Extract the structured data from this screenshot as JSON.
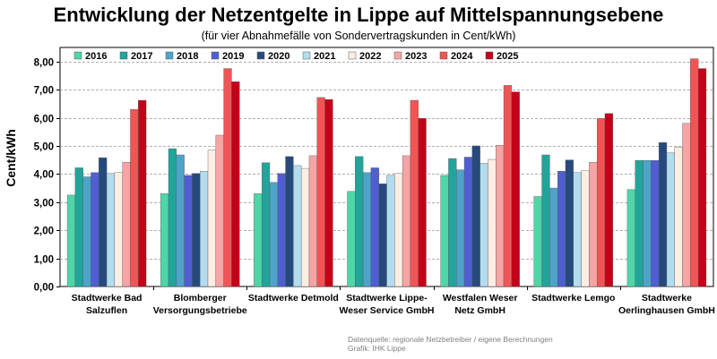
{
  "chart_data": {
    "type": "bar",
    "title": "Entwicklung der Netzentgelte in Lippe auf Mittelspannungsebene",
    "subtitle": "(für vier Abnahmefälle von Sondervertragskunden in Cent/kWh)",
    "ylabel": "Cent/kWh",
    "xlabel": "",
    "ylim": [
      0,
      8.5
    ],
    "yticks": [
      "0,00",
      "1,00",
      "2,00",
      "3,00",
      "4,00",
      "5,00",
      "6,00",
      "7,00",
      "8,00"
    ],
    "grid": true,
    "legend_position": "top-left",
    "categories": [
      [
        "Stadtwerke Bad",
        "Salzuflen"
      ],
      [
        "Blomberger",
        "Versorgungsbetriebe"
      ],
      [
        "Stadtwerke Detmold"
      ],
      [
        "Stadtwerke Lippe-",
        "Weser Service GmbH"
      ],
      [
        "Westfalen Weser",
        "Netz GmbH"
      ],
      [
        "Stadtwerke Lemgo"
      ],
      [
        "Stadtwerke",
        "Oerlinghausen GmbH"
      ]
    ],
    "series": [
      {
        "name": "2016",
        "color": "#4fd6a8",
        "values": [
          3.25,
          3.3,
          3.3,
          3.38,
          3.95,
          3.2,
          3.45
        ]
      },
      {
        "name": "2017",
        "color": "#21a59b",
        "values": [
          4.22,
          4.9,
          4.4,
          4.62,
          4.55,
          4.68,
          4.48
        ]
      },
      {
        "name": "2018",
        "color": "#4ea3c9",
        "values": [
          3.9,
          4.68,
          3.7,
          4.05,
          4.15,
          3.5,
          4.48
        ]
      },
      {
        "name": "2019",
        "color": "#4f5fd1",
        "values": [
          4.05,
          3.95,
          4.02,
          4.22,
          4.6,
          4.1,
          4.48
        ]
      },
      {
        "name": "2020",
        "color": "#274a7d",
        "values": [
          4.58,
          4.02,
          4.62,
          3.65,
          5.0,
          4.5,
          5.12
        ]
      },
      {
        "name": "2021",
        "color": "#b3dcef",
        "values": [
          4.02,
          4.1,
          4.3,
          3.95,
          4.38,
          4.05,
          4.75
        ]
      },
      {
        "name": "2022",
        "color": "#fdeee3",
        "values": [
          4.05,
          4.85,
          4.2,
          4.02,
          4.52,
          4.12,
          4.95
        ]
      },
      {
        "name": "2023",
        "color": "#f6a4a4",
        "values": [
          4.42,
          5.38,
          4.65,
          4.65,
          5.02,
          4.42,
          5.8
        ]
      },
      {
        "name": "2024",
        "color": "#f05555",
        "values": [
          6.3,
          7.75,
          6.72,
          6.62,
          7.15,
          5.98,
          8.1
        ]
      },
      {
        "name": "2025",
        "color": "#c40019",
        "values": [
          6.62,
          7.28,
          6.65,
          5.98,
          6.92,
          6.15,
          7.75
        ]
      }
    ]
  },
  "source": {
    "line1": "Datenquelle: regionale Netzbetreiber / eigene Berechnungen",
    "line2": "Grafik: IHK Lippe"
  }
}
